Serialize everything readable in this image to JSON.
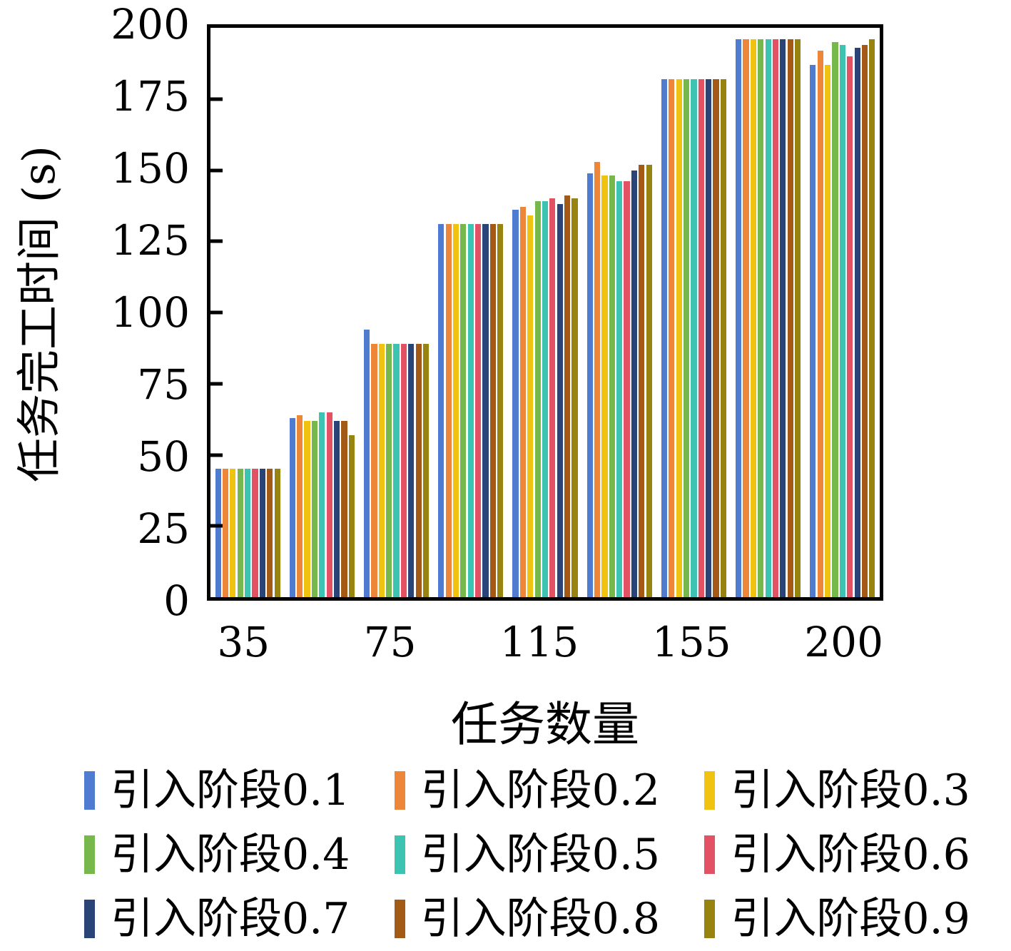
{
  "chart_data": {
    "type": "bar",
    "title": "",
    "xlabel": "任务数量",
    "ylabel": "任务完工时间 (s)",
    "ylim": [
      0,
      200
    ],
    "y_ticks": [
      0,
      25,
      50,
      75,
      100,
      125,
      150,
      175,
      200
    ],
    "x_tick_labels_visible": [
      "35",
      "75",
      "115",
      "155",
      "200"
    ],
    "categories": [
      "35",
      "",
      "75",
      "",
      "115",
      "",
      "155",
      "",
      "200"
    ],
    "grid": false,
    "legend_position": "bottom",
    "series": [
      {
        "name": "引入阶段0.1",
        "color": "#4F7CD1",
        "values": [
          45,
          63,
          94,
          131,
          136,
          149,
          182,
          196,
          187
        ]
      },
      {
        "name": "引入阶段0.2",
        "color": "#ED8639",
        "values": [
          45,
          64,
          89,
          131,
          137,
          153,
          182,
          196,
          192
        ]
      },
      {
        "name": "引入阶段0.3",
        "color": "#F0C311",
        "values": [
          45,
          62,
          89,
          131,
          134,
          148,
          182,
          196,
          187
        ]
      },
      {
        "name": "引入阶段0.4",
        "color": "#77B84C",
        "values": [
          45,
          62,
          89,
          131,
          139,
          148,
          182,
          196,
          195
        ]
      },
      {
        "name": "引入阶段0.5",
        "color": "#3DC3B2",
        "values": [
          45,
          65,
          89,
          131,
          139,
          146,
          182,
          196,
          194
        ]
      },
      {
        "name": "引入阶段0.6",
        "color": "#E25264",
        "values": [
          45,
          65,
          89,
          131,
          140,
          146,
          182,
          196,
          190
        ]
      },
      {
        "name": "引入阶段0.7",
        "color": "#2A4478",
        "values": [
          45,
          62,
          89,
          131,
          138,
          150,
          182,
          196,
          193
        ]
      },
      {
        "name": "引入阶段0.8",
        "color": "#A35A17",
        "values": [
          45,
          62,
          89,
          131,
          141,
          152,
          182,
          196,
          194
        ]
      },
      {
        "name": "引入阶段0.9",
        "color": "#97830F",
        "values": [
          45,
          57,
          89,
          131,
          140,
          152,
          182,
          196,
          196
        ]
      }
    ]
  }
}
